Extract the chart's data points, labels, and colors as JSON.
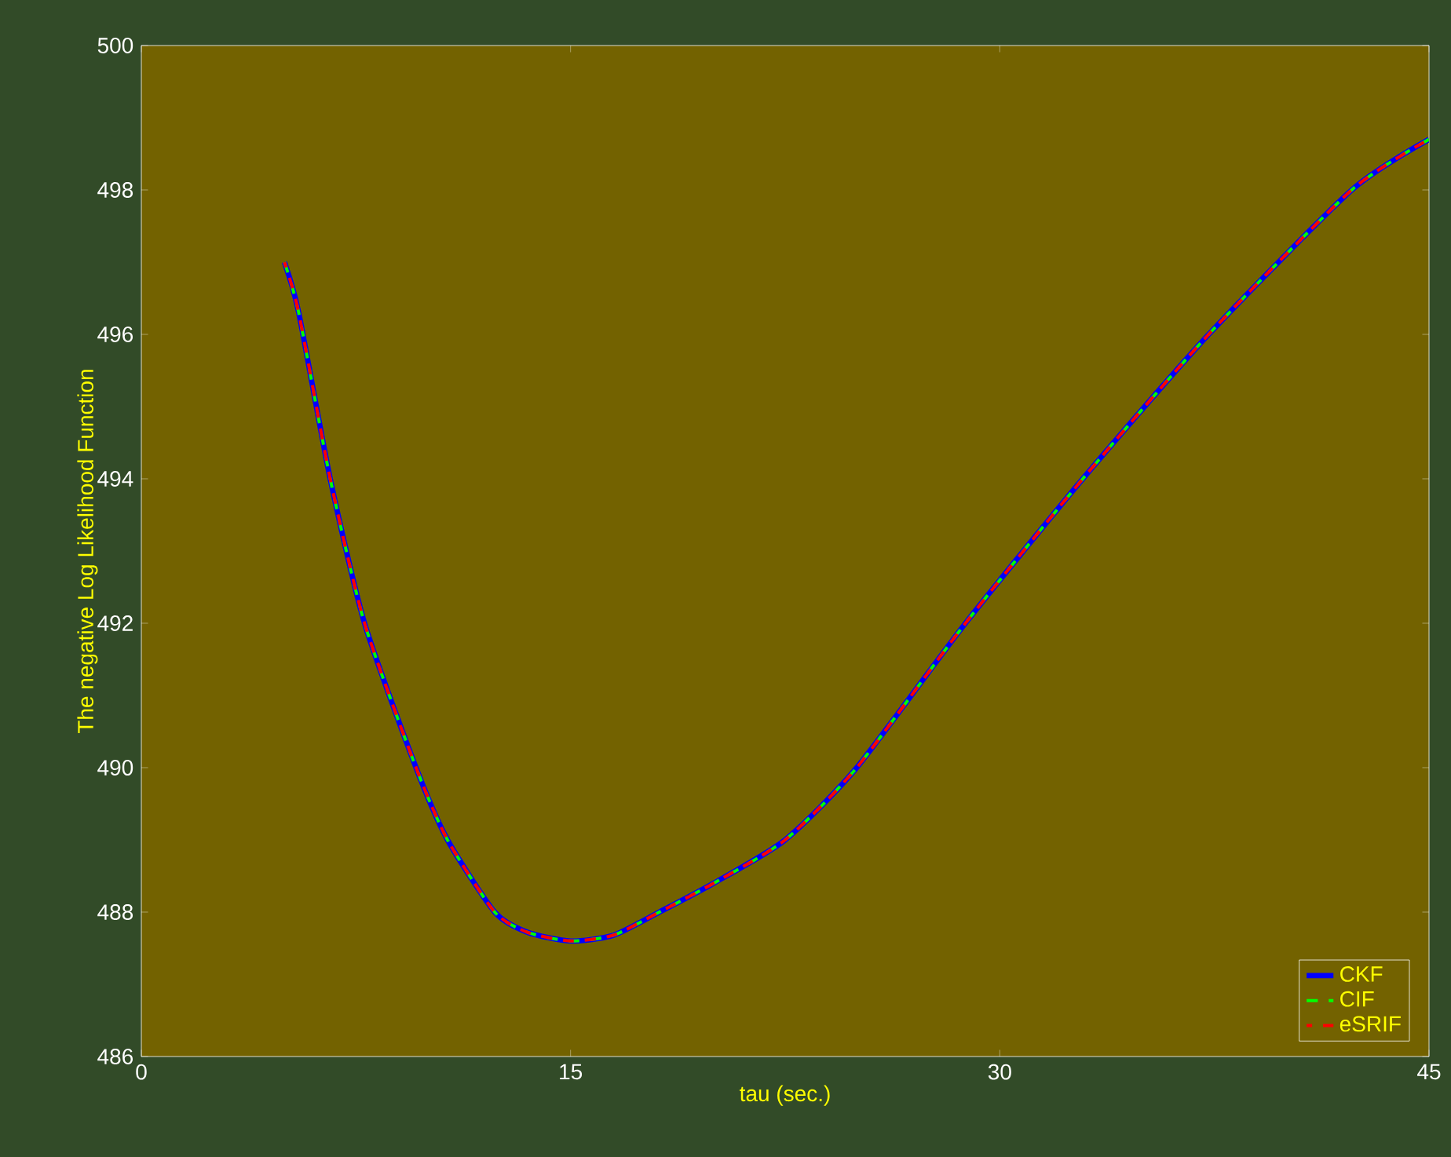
{
  "chart_data": {
    "type": "line",
    "xlabel": "tau (sec.)",
    "ylabel": "The negative Log Likelihood Function",
    "xlim": [
      0,
      45
    ],
    "ylim": [
      486,
      500
    ],
    "xticks": [
      0,
      15,
      30,
      45
    ],
    "yticks": [
      486,
      488,
      490,
      492,
      494,
      496,
      498,
      500
    ],
    "grid": false,
    "legend": "bottom right",
    "marker": "none",
    "series": [
      {
        "name": "CKF",
        "color": "#0000ff",
        "line_style": "solid",
        "x": [
          5,
          5.5,
          6.6,
          7.8,
          9.6,
          10.7,
          12.35,
          13.5,
          15,
          16.5,
          18.1,
          20,
          22.5,
          25,
          28.8,
          32.9,
          37.3,
          42.3,
          45
        ],
        "values": [
          497,
          496.3,
          494,
          492,
          490,
          489,
          488,
          487.72,
          487.6,
          487.68,
          488,
          488.4,
          489,
          490,
          492,
          494,
          496,
          498,
          498.7
        ]
      },
      {
        "name": "CIF",
        "color": "#00ff00",
        "line_style": "dashed",
        "x": [
          5,
          5.5,
          6.6,
          7.8,
          9.6,
          10.7,
          12.35,
          13.5,
          15,
          16.5,
          18.1,
          20,
          22.5,
          25,
          28.8,
          32.9,
          37.3,
          42.3,
          45
        ],
        "values": [
          497,
          496.3,
          494,
          492,
          490,
          489,
          488,
          487.72,
          487.6,
          487.68,
          488,
          488.4,
          489,
          490,
          492,
          494,
          496,
          498,
          498.7
        ]
      },
      {
        "name": "eSRIF",
        "color": "#ff0000",
        "line_style": "dashed",
        "x": [
          5,
          5.5,
          6.6,
          7.8,
          9.6,
          10.7,
          12.35,
          13.5,
          15,
          16.5,
          18.1,
          20,
          22.5,
          25,
          28.8,
          32.9,
          37.3,
          42.3,
          45
        ],
        "values": [
          497,
          496.3,
          494,
          492,
          490,
          489,
          488,
          487.72,
          487.6,
          487.68,
          488,
          488.4,
          489,
          490,
          492,
          494,
          496,
          498,
          498.7
        ]
      }
    ]
  }
}
